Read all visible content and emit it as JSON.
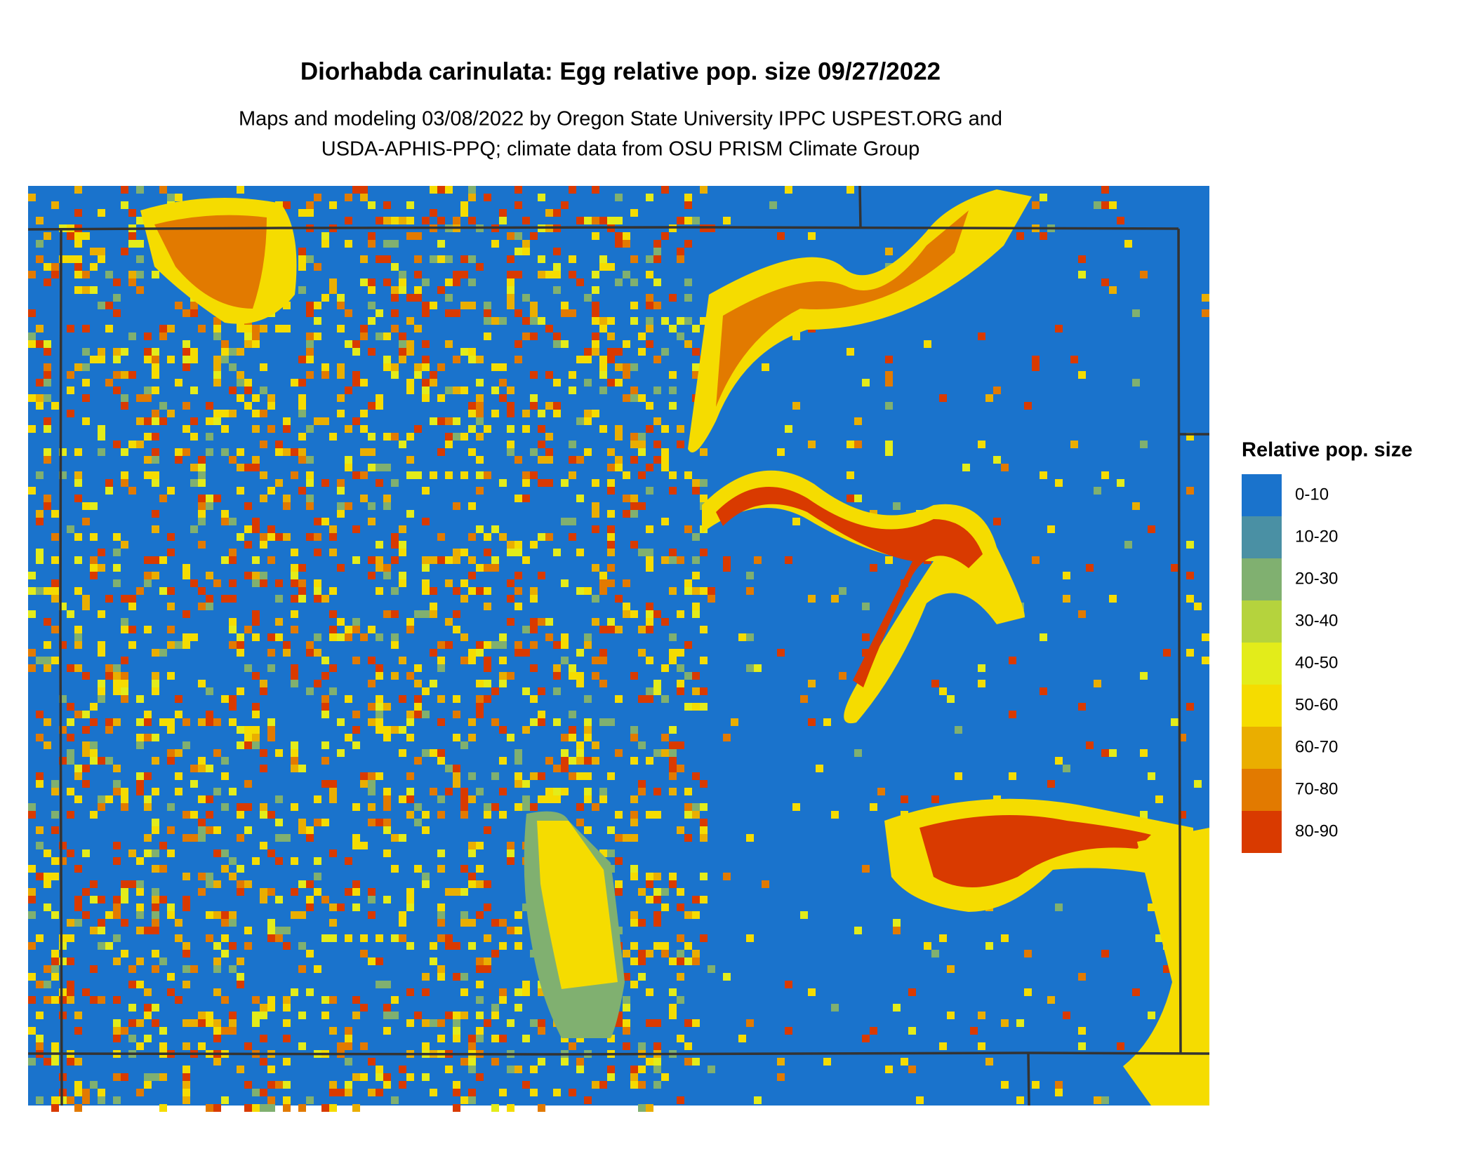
{
  "title": "Diorhabda carinulata: Egg relative pop. size 09/27/2022",
  "subtitle": [
    "Maps and modeling 03/08/2022 by Oregon State University IPPC USPEST.ORG and",
    "USDA-APHIS-PPQ; climate data from OSU PRISM Climate Group"
  ],
  "legend": {
    "title": "Relative pop. size",
    "items": [
      {
        "label": "0-10",
        "color": "#1a73cc"
      },
      {
        "label": "10-20",
        "color": "#4a90a4"
      },
      {
        "label": "20-30",
        "color": "#80b070"
      },
      {
        "label": "30-40",
        "color": "#b5d33d"
      },
      {
        "label": "40-50",
        "color": "#e3ec1a"
      },
      {
        "label": "50-60",
        "color": "#f5dc00"
      },
      {
        "label": "60-70",
        "color": "#eaae00"
      },
      {
        "label": "70-80",
        "color": "#e27a00"
      },
      {
        "label": "80-90",
        "color": "#d93a00"
      }
    ]
  }
}
